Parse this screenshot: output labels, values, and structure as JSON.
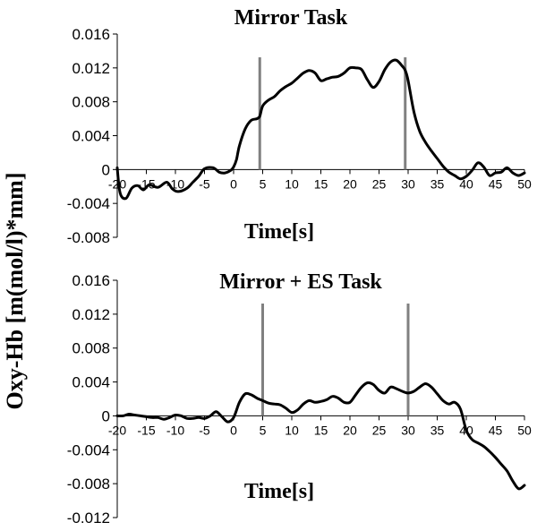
{
  "ylabel": "Oxy-Hb [m(mol/l)*mm]",
  "chart_data": [
    {
      "type": "line",
      "title": "Mirror Task",
      "xlabel": "Time[s]",
      "ylabel": "Oxy-Hb [m(mol/l)*mm]",
      "xlim": [
        -20,
        50
      ],
      "ylim": [
        -0.008,
        0.016
      ],
      "x_ticks": [
        -20,
        -15,
        -10,
        -5,
        0,
        5,
        10,
        15,
        20,
        25,
        30,
        35,
        40,
        45,
        50
      ],
      "y_ticks": [
        0.016,
        0.012,
        0.008,
        0.004,
        0,
        -0.004,
        -0.008
      ],
      "y_tick_labels": [
        "0.016",
        "0.012",
        "0.008",
        "0.004",
        "0",
        "-0.004",
        "-0.008"
      ],
      "event_lines_x": [
        4.5,
        29.5
      ],
      "colors": {
        "series": "#000000",
        "event": "#808080"
      },
      "series": [
        {
          "x": [
            -20,
            -19.5,
            -18.5,
            -17.5,
            -16.5,
            -15.5,
            -14.5,
            -13,
            -11.5,
            -10.5,
            -9.5,
            -8,
            -7,
            -6,
            -5,
            -3.5,
            -2.5,
            -1.5,
            -0.5,
            0,
            0.5,
            1,
            2,
            3,
            4,
            4.5,
            5,
            6,
            7,
            8,
            9,
            10,
            11,
            12,
            13,
            14,
            15,
            16,
            17,
            18,
            19,
            20,
            21,
            22,
            23,
            24,
            25,
            26,
            27,
            28,
            29,
            29.5,
            30,
            31,
            32,
            33,
            34,
            35,
            36,
            37,
            38,
            39,
            40,
            41,
            42,
            43,
            44,
            45,
            46,
            47,
            48,
            49,
            50
          ],
          "y": [
            0.0002,
            -0.0028,
            -0.0034,
            -0.0022,
            -0.0019,
            -0.0024,
            -0.0018,
            -0.0021,
            -0.0015,
            -0.0023,
            -0.0026,
            -0.0022,
            -0.0015,
            -0.0008,
            0.0001,
            0.0002,
            -0.0003,
            -0.0004,
            -0.0001,
            0.0003,
            0.0012,
            0.0028,
            0.0048,
            0.0058,
            0.006,
            0.0063,
            0.0075,
            0.0082,
            0.0086,
            0.0093,
            0.0098,
            0.0102,
            0.0108,
            0.0114,
            0.0117,
            0.0114,
            0.0105,
            0.0107,
            0.0109,
            0.011,
            0.0114,
            0.012,
            0.012,
            0.0118,
            0.0106,
            0.0097,
            0.0104,
            0.0118,
            0.0127,
            0.0129,
            0.0122,
            0.0117,
            0.0105,
            0.0068,
            0.0045,
            0.0032,
            0.0022,
            0.0013,
            0.0004,
            -0.0003,
            -0.0007,
            -0.0011,
            -0.0008,
            -0.0001,
            0.0008,
            0.0003,
            -0.0007,
            -0.0004,
            -0.0003,
            0.0002,
            -0.0004,
            -0.0007,
            -0.0004
          ]
        }
      ]
    },
    {
      "type": "line",
      "title": "Mirror + ES Task",
      "xlabel": "Time[s]",
      "ylabel": "Oxy-Hb [m(mol/l)*mm]",
      "xlim": [
        -20,
        50
      ],
      "ylim": [
        -0.012,
        0.016
      ],
      "x_ticks": [
        -20,
        -15,
        -10,
        -5,
        0,
        5,
        10,
        15,
        20,
        25,
        30,
        35,
        40,
        45,
        50
      ],
      "y_ticks": [
        0.016,
        0.012,
        0.008,
        0.004,
        0,
        -0.004,
        -0.008,
        -0.012
      ],
      "y_tick_labels": [
        "0.016",
        "0.012",
        "0.008",
        "0.004",
        "0",
        "-0.004",
        "-0.008",
        "-0.012"
      ],
      "event_lines_x": [
        5,
        30
      ],
      "colors": {
        "series": "#000000",
        "event": "#808080"
      },
      "series": [
        {
          "x": [
            -20,
            -19,
            -18,
            -17,
            -16,
            -15,
            -14,
            -13,
            -12,
            -11,
            -10,
            -9,
            -8,
            -7,
            -6,
            -5,
            -4,
            -3,
            -2,
            -1,
            0,
            1,
            2,
            3,
            4,
            5,
            6,
            7,
            8,
            9,
            10,
            11,
            12,
            13,
            14,
            15,
            16,
            17,
            18,
            19,
            20,
            21,
            22,
            23,
            24,
            25,
            26,
            27,
            28,
            29,
            30,
            31,
            32,
            33,
            34,
            35,
            36,
            37,
            38,
            39,
            40,
            41,
            42,
            43,
            44,
            45,
            46,
            47,
            48,
            49,
            50
          ],
          "y": [
            0,
            0,
            0.0002,
            0.0001,
            0,
            -0.0001,
            -0.0002,
            -0.0002,
            -0.0004,
            -0.0002,
            0.0001,
            0,
            -0.0003,
            -0.0003,
            -0.0002,
            -0.0003,
            0,
            0.0005,
            -0.0001,
            -0.0007,
            -0.0002,
            0.0016,
            0.0026,
            0.0025,
            0.0021,
            0.0018,
            0.0015,
            0.0014,
            0.0013,
            0.0009,
            0.0004,
            0.0007,
            0.0014,
            0.0018,
            0.0016,
            0.0017,
            0.0019,
            0.0023,
            0.0021,
            0.0016,
            0.0016,
            0.0025,
            0.0034,
            0.0039,
            0.0037,
            0.003,
            0.0027,
            0.0034,
            0.0032,
            0.0029,
            0.0027,
            0.0029,
            0.0034,
            0.0038,
            0.0034,
            0.0026,
            0.0018,
            0.0014,
            0.0016,
            0.0008,
            -0.0017,
            -0.0028,
            -0.0032,
            -0.0036,
            -0.0042,
            -0.0049,
            -0.0057,
            -0.0065,
            -0.0077,
            -0.0086,
            -0.0082
          ]
        }
      ]
    }
  ]
}
